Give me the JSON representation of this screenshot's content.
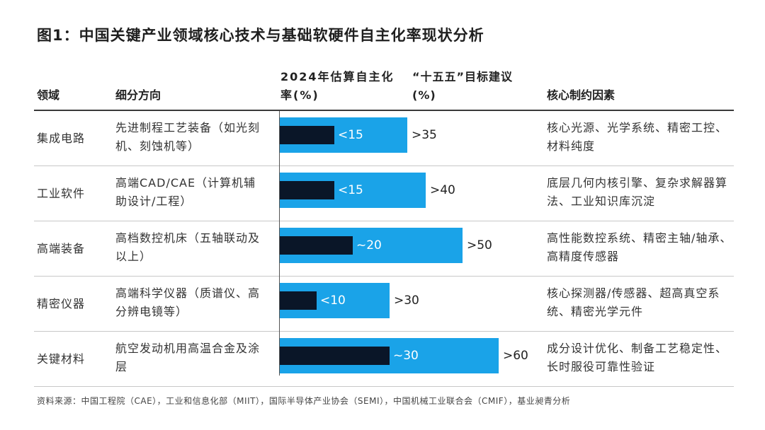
{
  "title": "图1：中国关键产业领域核心技术与基础软硬件自主化率现状分析",
  "headers": {
    "domain": "领域",
    "sub": "细分方向",
    "current": "2024年估算自主化率(%)",
    "target": "“十五五”目标建议(%)",
    "factor": "核心制约因素"
  },
  "rows": [
    {
      "domain": "集成电路",
      "sub": "先进制程工艺装备（如光刻机、刻蚀机等）",
      "current_label": "<15",
      "target_label": ">35",
      "factor": "核心光源、光学系统、精密工控、材料纯度"
    },
    {
      "domain": "工业软件",
      "sub": "高端CAD/CAE（计算机辅助设计/工程）",
      "current_label": "<15",
      "target_label": ">40",
      "factor": "底层几何内核引擎、复杂求解器算法、工业知识库沉淀"
    },
    {
      "domain": "高端装备",
      "sub": "高档数控机床（五轴联动及以上）",
      "current_label": "~20",
      "target_label": ">50",
      "factor": "高性能数控系统、精密主轴/轴承、高精度传感器"
    },
    {
      "domain": "精密仪器",
      "sub": "高端科学仪器（质谱仪、高分辨电镜等）",
      "current_label": "<10",
      "target_label": ">30",
      "factor": "核心探测器/传感器、超高真空系统、精密光学元件"
    },
    {
      "domain": "关键材料",
      "sub": "航空发动机用高温合金及涂层",
      "current_label": "~30",
      "target_label": ">60",
      "factor": "成分设计优化、制备工艺稳定性、长时服役可靠性验证"
    }
  ],
  "chart_data": {
    "type": "bar",
    "orientation": "horizontal",
    "categories": [
      "集成电路",
      "工业软件",
      "高端装备",
      "精密仪器",
      "关键材料"
    ],
    "series": [
      {
        "name": "2024年估算自主化率(%)",
        "values": [
          15,
          15,
          20,
          10,
          30
        ],
        "color": "#0a1628"
      },
      {
        "name": "“十五五”目标建议(%)",
        "values": [
          35,
          40,
          50,
          30,
          60
        ],
        "color": "#1aa3e8"
      }
    ],
    "xlim": [
      0,
      60
    ]
  },
  "source": "资料来源：中国工程院（CAE），工业和信息化部（MIIT），国际半导体产业协会（SEMI），中国机械工业联合会（CMIF），基业昶青分析",
  "colors": {
    "target": "#1aa3e8",
    "current": "#0a1628"
  }
}
